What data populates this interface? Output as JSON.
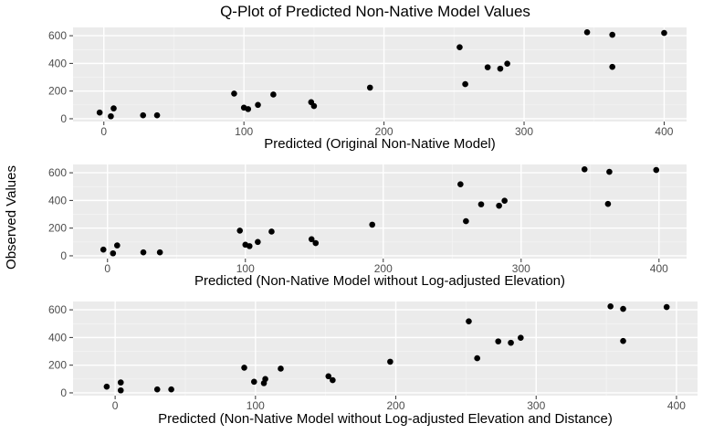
{
  "title": "Q-Plot of Predicted Non-Native Model Values",
  "y_title": "Observed Values",
  "colors": {
    "panel_bg": "#ebebeb",
    "grid_major": "#ffffff",
    "grid_minor": "#f5f5f5",
    "point": "#000000",
    "tick": "#333333",
    "tick_label": "#4d4d4d"
  },
  "chart_data": [
    {
      "type": "scatter",
      "xlabel": "Predicted (Original Non-Native Model)",
      "ylabel": "Observed Values",
      "xlim": [
        -22,
        416
      ],
      "ylim": [
        -20,
        660
      ],
      "x_ticks": [
        0,
        100,
        200,
        300,
        400
      ],
      "y_ticks": [
        0,
        200,
        400,
        600
      ],
      "grid": true,
      "points": [
        {
          "x": -3,
          "y": 45
        },
        {
          "x": 5,
          "y": 18
        },
        {
          "x": 7,
          "y": 75
        },
        {
          "x": 28,
          "y": 25
        },
        {
          "x": 38,
          "y": 25
        },
        {
          "x": 93,
          "y": 182
        },
        {
          "x": 100,
          "y": 80
        },
        {
          "x": 103,
          "y": 70
        },
        {
          "x": 110,
          "y": 100
        },
        {
          "x": 121,
          "y": 175
        },
        {
          "x": 148,
          "y": 120
        },
        {
          "x": 150,
          "y": 92
        },
        {
          "x": 190,
          "y": 225
        },
        {
          "x": 254,
          "y": 517
        },
        {
          "x": 258,
          "y": 250
        },
        {
          "x": 274,
          "y": 372
        },
        {
          "x": 283,
          "y": 362
        },
        {
          "x": 288,
          "y": 398
        },
        {
          "x": 345,
          "y": 625
        },
        {
          "x": 363,
          "y": 607
        },
        {
          "x": 363,
          "y": 375
        },
        {
          "x": 400,
          "y": 620
        }
      ]
    },
    {
      "type": "scatter",
      "xlabel": "Predicted (Non-Native Model without Log-adjusted Elevation)",
      "ylabel": "Observed Values",
      "xlim": [
        -25,
        420
      ],
      "ylim": [
        -20,
        660
      ],
      "x_ticks": [
        0,
        100,
        200,
        300,
        400
      ],
      "y_ticks": [
        0,
        200,
        400,
        600
      ],
      "grid": true,
      "points": [
        {
          "x": -3,
          "y": 45
        },
        {
          "x": 4,
          "y": 18
        },
        {
          "x": 7,
          "y": 75
        },
        {
          "x": 26,
          "y": 25
        },
        {
          "x": 38,
          "y": 25
        },
        {
          "x": 96,
          "y": 182
        },
        {
          "x": 100,
          "y": 80
        },
        {
          "x": 103,
          "y": 70
        },
        {
          "x": 109,
          "y": 100
        },
        {
          "x": 119,
          "y": 175
        },
        {
          "x": 148,
          "y": 120
        },
        {
          "x": 151,
          "y": 92
        },
        {
          "x": 192,
          "y": 225
        },
        {
          "x": 256,
          "y": 517
        },
        {
          "x": 260,
          "y": 250
        },
        {
          "x": 271,
          "y": 372
        },
        {
          "x": 284,
          "y": 362
        },
        {
          "x": 288,
          "y": 398
        },
        {
          "x": 346,
          "y": 625
        },
        {
          "x": 364,
          "y": 607
        },
        {
          "x": 363,
          "y": 375
        },
        {
          "x": 398,
          "y": 620
        }
      ]
    },
    {
      "type": "scatter",
      "xlabel": "Predicted (Non-Native Model without Log-adjusted Elevation and Distance)",
      "ylabel": "Observed Values",
      "xlim": [
        -30,
        415
      ],
      "ylim": [
        -20,
        660
      ],
      "x_ticks": [
        0,
        100,
        200,
        300,
        400
      ],
      "y_ticks": [
        0,
        200,
        400,
        600
      ],
      "grid": true,
      "points": [
        {
          "x": -6,
          "y": 45
        },
        {
          "x": 4,
          "y": 18
        },
        {
          "x": 4,
          "y": 75
        },
        {
          "x": 30,
          "y": 25
        },
        {
          "x": 40,
          "y": 25
        },
        {
          "x": 92,
          "y": 182
        },
        {
          "x": 99,
          "y": 80
        },
        {
          "x": 106,
          "y": 70
        },
        {
          "x": 107,
          "y": 100
        },
        {
          "x": 118,
          "y": 175
        },
        {
          "x": 152,
          "y": 120
        },
        {
          "x": 155,
          "y": 92
        },
        {
          "x": 196,
          "y": 225
        },
        {
          "x": 252,
          "y": 517
        },
        {
          "x": 258,
          "y": 250
        },
        {
          "x": 273,
          "y": 372
        },
        {
          "x": 282,
          "y": 362
        },
        {
          "x": 289,
          "y": 398
        },
        {
          "x": 353,
          "y": 625
        },
        {
          "x": 362,
          "y": 607
        },
        {
          "x": 362,
          "y": 375
        },
        {
          "x": 393,
          "y": 620
        }
      ]
    }
  ]
}
